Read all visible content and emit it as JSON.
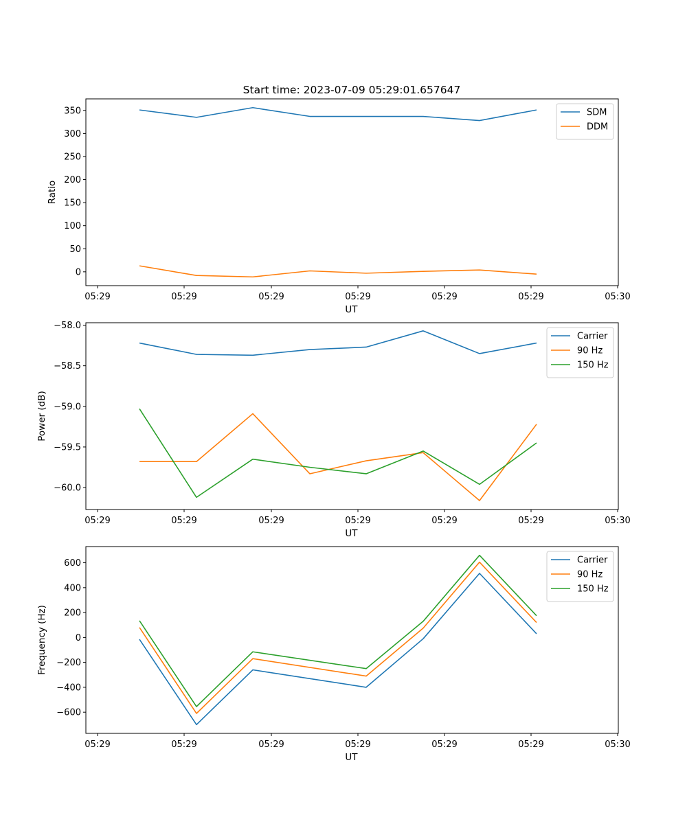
{
  "chart_data": [
    {
      "type": "line",
      "title": "Start time: 2023-07-09 05:29:01.657647",
      "xlabel": "UT",
      "ylabel": "Ratio",
      "x_tick_labels": [
        "05:29",
        "05:29",
        "05:29",
        "05:29",
        "05:29",
        "05:29",
        "05:30"
      ],
      "y_ticks": [
        0,
        50,
        100,
        150,
        200,
        250,
        300,
        350
      ],
      "y_tick_labels": [
        "0",
        "50",
        "100",
        "150",
        "200",
        "250",
        "300",
        "350"
      ],
      "ylim": [
        -30,
        375
      ],
      "legend_position": "top-right",
      "series": [
        {
          "name": "SDM",
          "color": "#1f77b4",
          "values": [
            351,
            335,
            356,
            337,
            337,
            337,
            328,
            351
          ]
        },
        {
          "name": "DDM",
          "color": "#ff7f0e",
          "values": [
            13,
            -8,
            -11,
            2,
            -3,
            1,
            4,
            -5
          ]
        }
      ]
    },
    {
      "type": "line",
      "title": "",
      "xlabel": "UT",
      "ylabel": "Power (dB)",
      "x_tick_labels": [
        "05:29",
        "05:29",
        "05:29",
        "05:29",
        "05:29",
        "05:29",
        "05:30"
      ],
      "y_ticks": [
        -58.0,
        -58.5,
        -59.0,
        -59.5,
        -60.0
      ],
      "y_tick_labels": [
        "−58.0",
        "−58.5",
        "−59.0",
        "−59.5",
        "−60.0"
      ],
      "ylim": [
        -60.27,
        -57.97
      ],
      "legend_position": "top-right",
      "series": [
        {
          "name": "Carrier",
          "color": "#1f77b4",
          "values": [
            -58.22,
            -58.36,
            -58.37,
            -58.3,
            -58.27,
            -58.07,
            -58.35,
            -58.22
          ]
        },
        {
          "name": "90 Hz",
          "color": "#ff7f0e",
          "values": [
            -59.68,
            -59.68,
            -59.09,
            -59.83,
            -59.67,
            -59.57,
            -60.16,
            -59.22
          ]
        },
        {
          "name": "150 Hz",
          "color": "#2ca02c",
          "values": [
            -59.03,
            -60.12,
            -59.65,
            -59.75,
            -59.83,
            -59.55,
            -59.96,
            -59.45
          ]
        }
      ]
    },
    {
      "type": "line",
      "title": "",
      "xlabel": "UT",
      "ylabel": "Frequency (Hz)",
      "x_tick_labels": [
        "05:29",
        "05:29",
        "05:29",
        "05:29",
        "05:29",
        "05:29",
        "05:30"
      ],
      "y_ticks": [
        600,
        400,
        200,
        0,
        -200,
        -400,
        -600
      ],
      "y_tick_labels": [
        "600",
        "400",
        "200",
        "0",
        "−200",
        "−400",
        "−600"
      ],
      "ylim": [
        -770,
        730
      ],
      "legend_position": "top-right",
      "series": [
        {
          "name": "Carrier",
          "color": "#1f77b4",
          "values": [
            -15,
            -700,
            -260,
            -400,
            -10,
            515,
            30
          ]
        },
        {
          "name": "90 Hz",
          "color": "#ff7f0e",
          "values": [
            80,
            -610,
            -170,
            -310,
            75,
            605,
            120
          ]
        },
        {
          "name": "150 Hz",
          "color": "#2ca02c",
          "values": [
            135,
            -555,
            -115,
            -250,
            130,
            660,
            175
          ]
        }
      ]
    }
  ]
}
